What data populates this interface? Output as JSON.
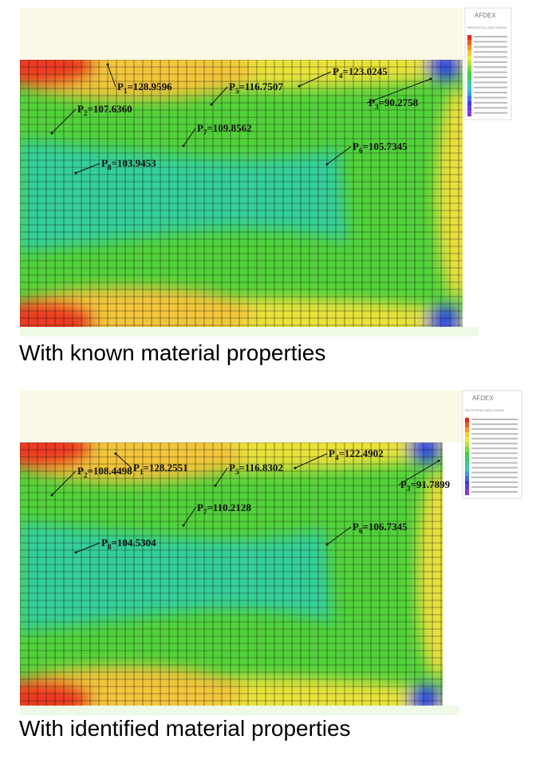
{
  "panels": [
    {
      "software": "AFDEX",
      "legend_title": "RECRYSTALLIZED GRAIN",
      "caption": "With known material properties",
      "labels": [
        {
          "p": "P",
          "sub": "1",
          "text": "=128.9596"
        },
        {
          "p": "P",
          "sub": "5",
          "text": "=116.7507"
        },
        {
          "p": "P",
          "sub": "4",
          "text": "=123.0245"
        },
        {
          "p": "P",
          "sub": "3",
          "text": "=90.2758"
        },
        {
          "p": "P",
          "sub": "2",
          "text": "=107.6360"
        },
        {
          "p": "P",
          "sub": "7",
          "text": "=109.8562"
        },
        {
          "p": "P",
          "sub": "6",
          "text": "=105.7345"
        },
        {
          "p": "P",
          "sub": "8",
          "text": "=103.9453"
        }
      ]
    },
    {
      "software": "AFDEX",
      "legend_title": "RECRYSTALLIZED GRAIN",
      "caption": "With identified material properties",
      "labels": [
        {
          "p": "P",
          "sub": "1",
          "text": "=128.2551"
        },
        {
          "p": "P",
          "sub": "5",
          "text": "=116.8302"
        },
        {
          "p": "P",
          "sub": "4",
          "text": "=122.4902"
        },
        {
          "p": "P",
          "sub": "3",
          "text": "=91.7899"
        },
        {
          "p": "P",
          "sub": "2",
          "text": "=108.4498"
        },
        {
          "p": "P",
          "sub": "7",
          "text": "=110.2128"
        },
        {
          "p": "P",
          "sub": "6",
          "text": "=106.7345"
        },
        {
          "p": "P",
          "sub": "8",
          "text": "=104.5304"
        }
      ]
    }
  ]
}
